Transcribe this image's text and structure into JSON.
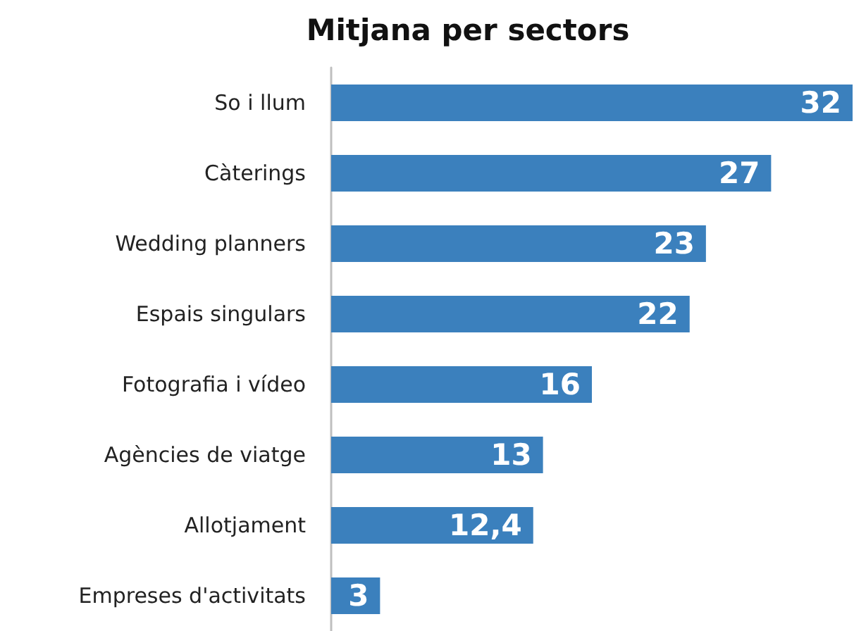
{
  "chart_data": {
    "type": "bar",
    "orientation": "horizontal",
    "title": "Mitjana per sectors",
    "categories": [
      "So i llum",
      "Càterings",
      "Wedding planners",
      "Espais singulars",
      "Fotografia i vídeo",
      "Agències de viatge",
      "Allotjament",
      "Empreses d'activitats"
    ],
    "values": [
      32,
      27,
      23,
      22,
      16,
      13,
      12.4,
      3
    ],
    "value_labels": [
      "32",
      "27",
      "23",
      "22",
      "16",
      "13",
      "12,4",
      "3"
    ],
    "color": "#3b80bd",
    "xlim": [
      0,
      32
    ],
    "tick_labels": "y"
  }
}
